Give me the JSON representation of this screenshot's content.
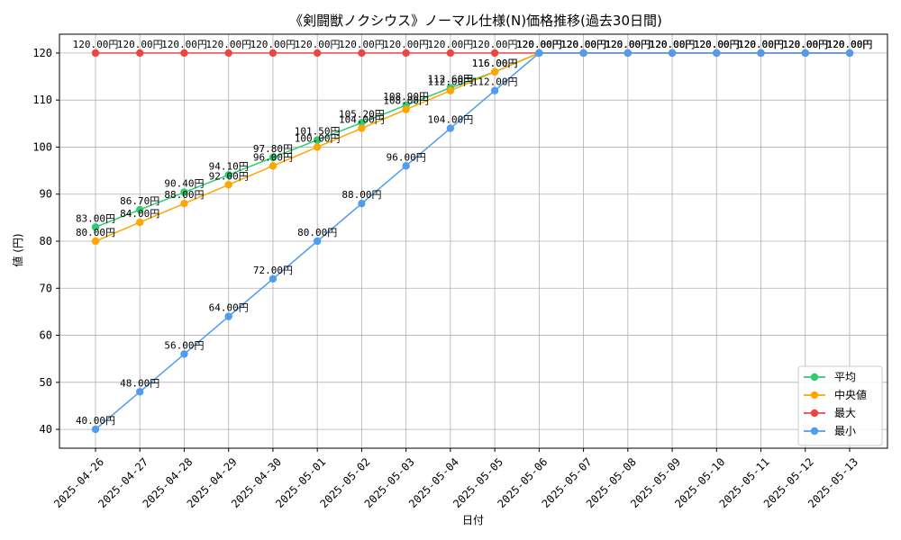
{
  "chart_data": {
    "type": "line",
    "title": "《剣闘獣ノクシウス》ノーマル仕様(N)価格推移(過去30日間)",
    "xlabel": "日付",
    "ylabel": "値 (円)",
    "ylim": [
      36,
      124
    ],
    "yticks": [
      40,
      50,
      60,
      70,
      80,
      90,
      100,
      110,
      120
    ],
    "grid": true,
    "legend_position": "bottom-right",
    "categories": [
      "2025-04-26",
      "2025-04-27",
      "2025-04-28",
      "2025-04-29",
      "2025-04-30",
      "2025-05-01",
      "2025-05-02",
      "2025-05-03",
      "2025-05-04",
      "2025-05-05",
      "2025-05-06",
      "2025-05-07",
      "2025-05-08",
      "2025-05-09",
      "2025-05-10",
      "2025-05-11",
      "2025-05-12",
      "2025-05-13"
    ],
    "series": [
      {
        "name": "平均",
        "color": "#2ecc71",
        "values": [
          83.0,
          86.7,
          90.4,
          94.1,
          97.8,
          101.5,
          105.2,
          108.9,
          112.6,
          116.0,
          120,
          120,
          120,
          120,
          120,
          120,
          120,
          120
        ],
        "labels": [
          "83.00円",
          "86.70円",
          "90.40円",
          "94.10円",
          "97.80円",
          "101.50円",
          "105.20円",
          "108.90円",
          "112.60円",
          "116.00円",
          "120.00円",
          "120.00円",
          "120.00円",
          "120.00円",
          "120.00円",
          "120.00円",
          "120.00円",
          "120.00円"
        ]
      },
      {
        "name": "中央値",
        "color": "#ffa500",
        "values": [
          80,
          84,
          88,
          92,
          96,
          100,
          104,
          108,
          112,
          116,
          120,
          120,
          120,
          120,
          120,
          120,
          120,
          120
        ],
        "labels": [
          "80.00円",
          "84.00円",
          "88.00円",
          "92.00円",
          "96.00円",
          "100.00円",
          "104.00円",
          "108.00円",
          "112.00円",
          "116.00円",
          "120.00円",
          "120.00円",
          "120.00円",
          "120.00円",
          "120.00円",
          "120.00円",
          "120.00円",
          "120.00円"
        ]
      },
      {
        "name": "最大",
        "color": "#ef4444",
        "values": [
          120,
          120,
          120,
          120,
          120,
          120,
          120,
          120,
          120,
          120,
          120,
          120,
          120,
          120,
          120,
          120,
          120,
          120
        ],
        "labels": [
          "120.00円",
          "120.00円",
          "120.00円",
          "120.00円",
          "120.00円",
          "120.00円",
          "120.00円",
          "120.00円",
          "120.00円",
          "120.00円",
          "120.00円",
          "120.00円",
          "120.00円",
          "120.00円",
          "120.00円",
          "120.00円",
          "120.00円",
          "120.00円"
        ]
      },
      {
        "name": "最小",
        "color": "#4f9cf0",
        "values": [
          40,
          48,
          56,
          64,
          72,
          80,
          88,
          96,
          104,
          112,
          120,
          120,
          120,
          120,
          120,
          120,
          120,
          120
        ],
        "labels": [
          "40.00円",
          "48.00円",
          "56.00円",
          "64.00円",
          "72.00円",
          "80.00円",
          "88.00円",
          "96.00円",
          "104.00円",
          "112.00円",
          "120.00円",
          "120.00円",
          "120.00円",
          "120.00円",
          "120.00円",
          "120.00円",
          "120.00円",
          "120.00円"
        ]
      }
    ]
  }
}
